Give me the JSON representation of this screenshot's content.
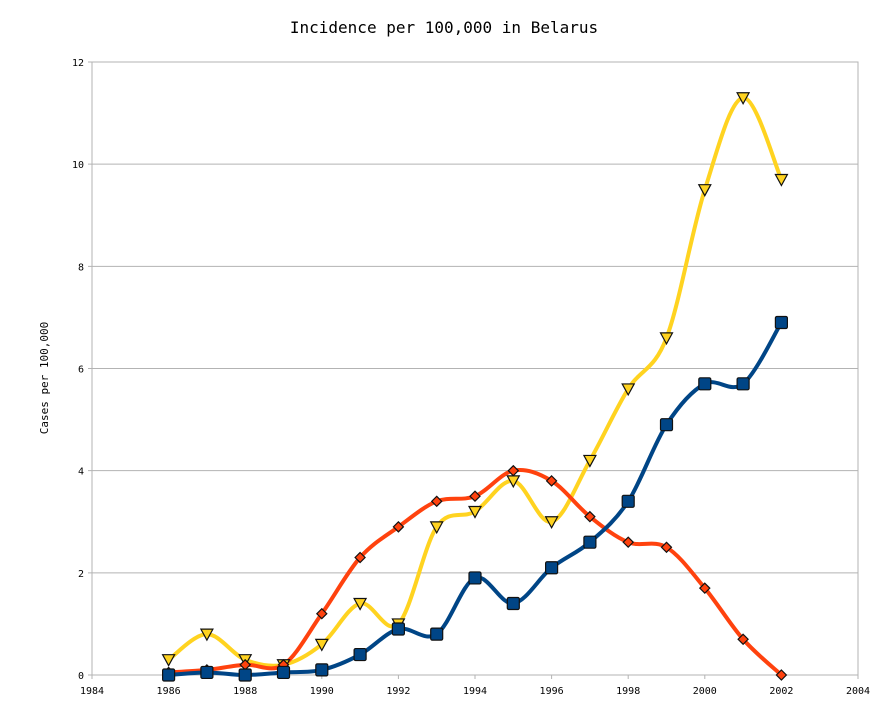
{
  "chart_data": {
    "type": "line",
    "title": "Incidence per 100,000 in Belarus",
    "xlabel": "",
    "ylabel": "Cases per 100,000",
    "xlim": [
      1984,
      2004
    ],
    "ylim": [
      0,
      12
    ],
    "xticks": [
      "1984",
      "1986",
      "1988",
      "1990",
      "1992",
      "1994",
      "1996",
      "1998",
      "2000",
      "2002",
      "2004"
    ],
    "yticks": [
      "0",
      "2",
      "4",
      "6",
      "8",
      "10",
      "12"
    ],
    "grid": "horizontal",
    "x": [
      1986,
      1987,
      1988,
      1989,
      1990,
      1991,
      1992,
      1993,
      1994,
      1995,
      1996,
      1997,
      1998,
      1999,
      2000,
      2001,
      2002
    ],
    "series": [
      {
        "color": "#ffd320",
        "marker": "triangle-down",
        "values": [
          0.3,
          0.8,
          0.3,
          0.2,
          0.6,
          1.4,
          1.0,
          2.9,
          3.2,
          3.8,
          3.0,
          4.2,
          5.6,
          6.6,
          9.5,
          11.3,
          9.7
        ]
      },
      {
        "color": "#ff420e",
        "marker": "diamond",
        "values": [
          0.05,
          0.1,
          0.2,
          0.2,
          1.2,
          2.3,
          2.9,
          3.4,
          3.5,
          4.0,
          3.8,
          3.1,
          2.6,
          2.5,
          1.7,
          0.7,
          0.0
        ]
      },
      {
        "color": "#004586",
        "marker": "square",
        "values": [
          0.0,
          0.05,
          0.0,
          0.05,
          0.1,
          0.4,
          0.9,
          0.8,
          1.9,
          1.4,
          2.1,
          2.6,
          3.4,
          4.9,
          5.7,
          5.7,
          6.9
        ]
      }
    ]
  }
}
